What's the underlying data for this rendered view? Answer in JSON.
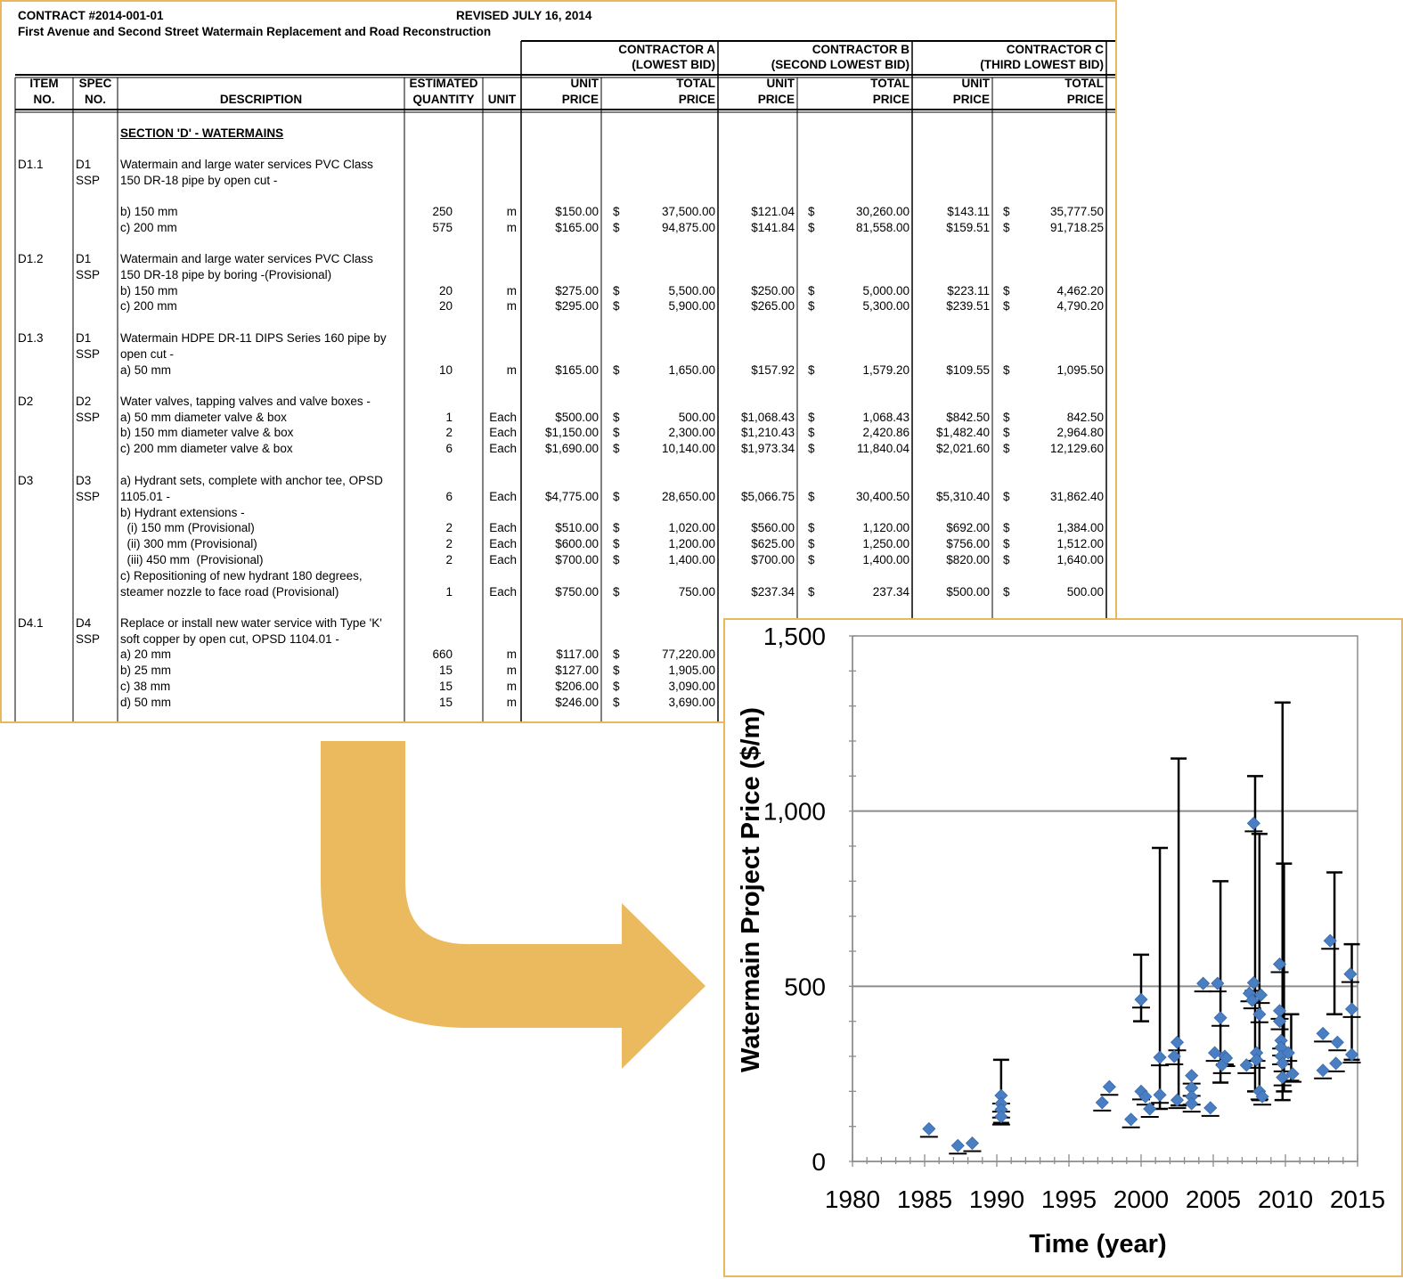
{
  "document": {
    "contract": "CONTRACT #2014-001-01",
    "revised": "REVISED JULY 16, 2014",
    "project": "First Avenue and Second Street Watermain Replacement and Road Reconstruction",
    "contractors": [
      {
        "name": "CONTRACTOR A",
        "rank": "(LOWEST BID)"
      },
      {
        "name": "CONTRACTOR B",
        "rank": "(SECOND LOWEST BID)"
      },
      {
        "name": "CONTRACTOR C",
        "rank": "(THIRD  LOWEST BID)"
      }
    ],
    "col_headers": {
      "item_no": [
        "ITEM",
        "NO."
      ],
      "spec_no": [
        "SPEC",
        "NO."
      ],
      "description": "DESCRIPTION",
      "quantity": [
        "ESTIMATED",
        "QUANTITY"
      ],
      "unit": "UNIT",
      "unit_price": [
        "UNIT",
        "PRICE"
      ],
      "total_price": [
        "TOTAL",
        "PRICE"
      ]
    },
    "section_title": "SECTION 'D' - WATERMAINS",
    "rows": [
      {
        "item": "D1.1",
        "spec": [
          "D1",
          "SSP"
        ],
        "desc": [
          "Watermain and large water services PVC Class",
          "150 DR-18 pipe by open cut -"
        ]
      },
      {
        "desc": [
          "b) 150 mm"
        ],
        "qty": "250",
        "unit": "m",
        "a_unit": "$150.00",
        "a_total": "37,500.00",
        "b_unit": "$121.04",
        "b_total": "30,260.00",
        "c_unit": "$143.11",
        "c_total": "35,777.50"
      },
      {
        "desc": [
          "c) 200 mm"
        ],
        "qty": "575",
        "unit": "m",
        "a_unit": "$165.00",
        "a_total": "94,875.00",
        "b_unit": "$141.84",
        "b_total": "81,558.00",
        "c_unit": "$159.51",
        "c_total": "91,718.25"
      },
      {
        "item": "D1.2",
        "spec": [
          "D1",
          "SSP"
        ],
        "desc": [
          "Watermain and large water services PVC Class",
          "150 DR-18 pipe by boring -(Provisional)"
        ]
      },
      {
        "desc": [
          "b) 150 mm"
        ],
        "qty": "20",
        "unit": "m",
        "a_unit": "$275.00",
        "a_total": "5,500.00",
        "b_unit": "$250.00",
        "b_total": "5,000.00",
        "c_unit": "$223.11",
        "c_total": "4,462.20"
      },
      {
        "desc": [
          "c) 200 mm"
        ],
        "qty": "20",
        "unit": "m",
        "a_unit": "$295.00",
        "a_total": "5,900.00",
        "b_unit": "$265.00",
        "b_total": "5,300.00",
        "c_unit": "$239.51",
        "c_total": "4,790.20"
      },
      {
        "item": "D1.3",
        "spec": [
          "D1",
          "SSP"
        ],
        "desc": [
          "Watermain HDPE DR-11 DIPS Series 160 pipe by",
          "open cut -"
        ]
      },
      {
        "desc": [
          "a) 50 mm"
        ],
        "qty": "10",
        "unit": "m",
        "a_unit": "$165.00",
        "a_total": "1,650.00",
        "b_unit": "$157.92",
        "b_total": "1,579.20",
        "c_unit": "$109.55",
        "c_total": "1,095.50"
      },
      {
        "item": "D2",
        "spec": [
          "D2",
          "SSP"
        ],
        "desc": [
          "Water valves, tapping valves and valve boxes -"
        ]
      },
      {
        "desc": [
          "a) 50 mm diameter valve & box"
        ],
        "qty": "1",
        "unit": "Each",
        "a_unit": "$500.00",
        "a_total": "500.00",
        "b_unit": "$1,068.43",
        "b_total": "1,068.43",
        "c_unit": "$842.50",
        "c_total": "842.50"
      },
      {
        "desc": [
          "b) 150 mm diameter valve & box"
        ],
        "qty": "2",
        "unit": "Each",
        "a_unit": "$1,150.00",
        "a_total": "2,300.00",
        "b_unit": "$1,210.43",
        "b_total": "2,420.86",
        "c_unit": "$1,482.40",
        "c_total": "2,964.80"
      },
      {
        "desc": [
          "c) 200 mm diameter valve & box"
        ],
        "qty": "6",
        "unit": "Each",
        "a_unit": "$1,690.00",
        "a_total": "10,140.00",
        "b_unit": "$1,973.34",
        "b_total": "11,840.04",
        "c_unit": "$2,021.60",
        "c_total": "12,129.60"
      },
      {
        "item": "D3",
        "spec": [
          "D3",
          "SSP"
        ],
        "desc": [
          "a) Hydrant sets, complete with anchor tee, OPSD",
          "1105.01 -"
        ],
        "qty": "6",
        "unit": "Each",
        "a_unit": "$4,775.00",
        "a_total": "28,650.00",
        "b_unit": "$5,066.75",
        "b_total": "30,400.50",
        "c_unit": "$5,310.40",
        "c_total": "31,862.40"
      },
      {
        "desc": [
          "b) Hydrant extensions -"
        ]
      },
      {
        "desc": [
          "  (i) 150 mm (Provisional)"
        ],
        "qty": "2",
        "unit": "Each",
        "a_unit": "$510.00",
        "a_total": "1,020.00",
        "b_unit": "$560.00",
        "b_total": "1,120.00",
        "c_unit": "$692.00",
        "c_total": "1,384.00"
      },
      {
        "desc": [
          "  (ii) 300 mm (Provisional)"
        ],
        "qty": "2",
        "unit": "Each",
        "a_unit": "$600.00",
        "a_total": "1,200.00",
        "b_unit": "$625.00",
        "b_total": "1,250.00",
        "c_unit": "$756.00",
        "c_total": "1,512.00"
      },
      {
        "desc": [
          "  (iii) 450 mm  (Provisional)"
        ],
        "qty": "2",
        "unit": "Each",
        "a_unit": "$700.00",
        "a_total": "1,400.00",
        "b_unit": "$700.00",
        "b_total": "1,400.00",
        "c_unit": "$820.00",
        "c_total": "1,640.00"
      },
      {
        "desc": [
          "c) Repositioning of new hydrant 180 degrees,",
          "steamer nozzle to face road (Provisional)"
        ],
        "qty": "1",
        "unit": "Each",
        "a_unit": "$750.00",
        "a_total": "750.00",
        "b_unit": "$237.34",
        "b_total": "237.34",
        "c_unit": "$500.00",
        "c_total": "500.00"
      },
      {
        "item": "D4.1",
        "spec": [
          "D4",
          "SSP"
        ],
        "desc": [
          "Replace or install new water service with Type 'K'",
          "soft copper by open cut, OPSD 1104.01 -"
        ]
      },
      {
        "desc": [
          "a) 20 mm"
        ],
        "qty": "660",
        "unit": "m",
        "a_unit": "$117.00",
        "a_total": "77,220.00"
      },
      {
        "desc": [
          "b) 25 mm"
        ],
        "qty": "15",
        "unit": "m",
        "a_unit": "$127.00",
        "a_total": "1,905.00"
      },
      {
        "desc": [
          "c) 38 mm"
        ],
        "qty": "15",
        "unit": "m",
        "a_unit": "$206.00",
        "a_total": "3,090.00"
      },
      {
        "desc": [
          "d) 50 mm"
        ],
        "qty": "15",
        "unit": "m",
        "a_unit": "$246.00",
        "a_total": "3,690.00"
      }
    ]
  },
  "arrow": {
    "color": "#ebb95e"
  },
  "chart_data": {
    "type": "scatter",
    "title": "",
    "xlabel": "Time (year)",
    "ylabel": "Watermain Project Price ($/m)",
    "xlim": [
      1980,
      2015
    ],
    "ylim": [
      0,
      1500
    ],
    "xticks": [
      "1980",
      "1985",
      "1990",
      "1995",
      "2000",
      "2005",
      "2010",
      "2015"
    ],
    "xtick_values": [
      1980,
      1985,
      1990,
      1995,
      2000,
      2005,
      2010,
      2015
    ],
    "yticks": [
      "0",
      "500",
      "1,000",
      "1,500"
    ],
    "ytick_values": [
      0,
      500,
      1000,
      1500
    ],
    "gridlines_y": [
      500,
      1000
    ],
    "marker_color": "#4a7ec2",
    "x": [
      1985.3,
      1987.3,
      1988.3,
      1990.3,
      1990.3,
      1990.3,
      1990.3,
      1997.3,
      1997.8,
      1999.3,
      2000,
      2000,
      2000.3,
      2000.6,
      2001.3,
      2001.3,
      2002.3,
      2002.5,
      2002.5,
      2003.5,
      2003.5,
      2003.5,
      2003.5,
      2004.3,
      2004.8,
      2005.1,
      2005.3,
      2005.5,
      2005.6,
      2005.8,
      2005.9,
      2007.3,
      2007.5,
      2007.7,
      2007.8,
      2007.8,
      2008.0,
      2008.0,
      2008.2,
      2008.2,
      2008.3,
      2008.4,
      2009.6,
      2009.6,
      2009.6,
      2009.7,
      2009.7,
      2009.7,
      2009.8,
      2009.8,
      2010.2,
      2010.5,
      2012.6,
      2012.6,
      2013.1,
      2013.5,
      2013.6,
      2014.5,
      2014.6,
      2014.6
    ],
    "y": [
      93,
      45,
      52,
      188,
      165,
      148,
      128,
      168,
      213,
      120,
      462,
      200,
      185,
      150,
      190,
      297,
      300,
      340,
      175,
      245,
      210,
      185,
      165,
      508,
      153,
      310,
      508,
      410,
      275,
      300,
      295,
      275,
      480,
      460,
      510,
      965,
      310,
      290,
      200,
      420,
      475,
      185,
      563,
      430,
      400,
      345,
      325,
      300,
      280,
      240,
      310,
      250,
      365,
      260,
      630,
      280,
      340,
      535,
      435,
      305
    ],
    "error_bars": [
      {
        "x": 1990.3,
        "low": 110,
        "high": 290
      },
      {
        "x": 2000,
        "low": 400,
        "high": 590
      },
      {
        "x": 2001.3,
        "low": 150,
        "high": 895
      },
      {
        "x": 2002.6,
        "low": 160,
        "high": 1150
      },
      {
        "x": 2005.5,
        "low": 225,
        "high": 800
      },
      {
        "x": 2007.9,
        "low": 200,
        "high": 1100
      },
      {
        "x": 2008.2,
        "low": 175,
        "high": 935
      },
      {
        "x": 2009.8,
        "low": 175,
        "high": 1310
      },
      {
        "x": 2009.9,
        "low": 200,
        "high": 850
      },
      {
        "x": 2010.4,
        "low": 230,
        "high": 420
      },
      {
        "x": 2013.4,
        "low": 420,
        "high": 825
      },
      {
        "x": 2014.6,
        "low": 290,
        "high": 620
      }
    ]
  }
}
